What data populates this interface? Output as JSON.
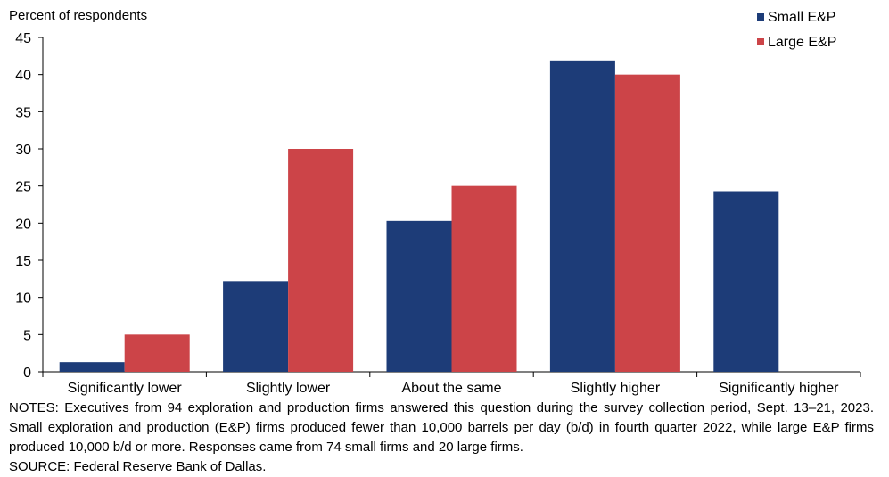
{
  "chart_data": {
    "type": "bar",
    "title": "",
    "ylabel": "Percent of respondents",
    "xlabel": "",
    "ylim": [
      0,
      45
    ],
    "yticks": [
      0,
      5,
      10,
      15,
      20,
      25,
      30,
      35,
      40,
      45
    ],
    "categories": [
      "Significantly lower",
      "Slightly lower",
      "About the same",
      "Slightly higher",
      "Significantly higher"
    ],
    "series": [
      {
        "name": "Small E&P",
        "color": "#1d3c78",
        "values": [
          1.3,
          12.2,
          20.3,
          41.9,
          24.3
        ]
      },
      {
        "name": "Large E&P",
        "color": "#cc4448",
        "values": [
          5.0,
          30.0,
          25.0,
          40.0,
          0.0
        ]
      }
    ],
    "legend_position": "top-right",
    "grid": false
  },
  "notes": {
    "body": "NOTES: Executives from 94 exploration and production firms answered this question during the survey collection period, Sept. 13–21, 2023. Small exploration and production (E&P) firms produced fewer than 10,000 barrels per day (b/d) in fourth quarter 2022, while large E&P firms produced 10,000 b/d or more. Responses came from 74 small firms and 20 large firms.",
    "source": "SOURCE: Federal Reserve Bank of Dallas."
  }
}
